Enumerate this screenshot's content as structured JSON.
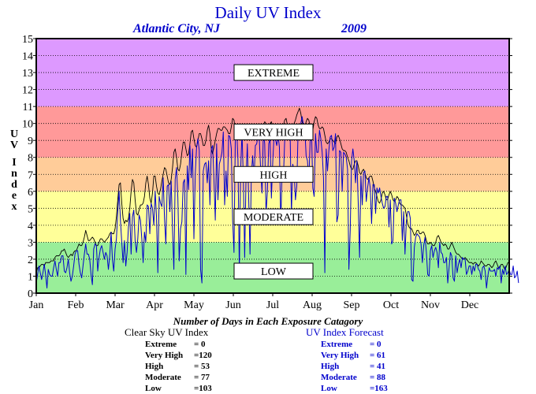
{
  "chart_data": {
    "type": "line",
    "title": "Daily UV Index",
    "location": "Atlantic City, NJ",
    "year": "2009",
    "ylabel": "UV Index",
    "xlabel": "",
    "ylim": [
      0,
      15
    ],
    "y_ticks": [
      0,
      1,
      2,
      3,
      4,
      5,
      6,
      7,
      8,
      9,
      10,
      11,
      12,
      13,
      14,
      15
    ],
    "x_tick_labels": [
      "Jan",
      "Feb",
      "Mar",
      "Apr",
      "May",
      "Jun",
      "Jul",
      "Aug",
      "Sep",
      "Oct",
      "Nov",
      "Dec"
    ],
    "grid": true,
    "bands": [
      {
        "label": "LOW",
        "from": 0,
        "to": 3,
        "color": "#99ee99",
        "label_y": 1.3
      },
      {
        "label": "MODERATE",
        "from": 3,
        "to": 6,
        "color": "#ffff99",
        "label_y": 4.5
      },
      {
        "label": "HIGH",
        "from": 6,
        "to": 8,
        "color": "#ffcc99",
        "label_y": 7
      },
      {
        "label": "VERY HIGH",
        "from": 8,
        "to": 11,
        "color": "#ff9999",
        "label_y": 9.5
      },
      {
        "label": "EXTREME",
        "from": 11,
        "to": 15,
        "color": "#dd99ff",
        "label_y": 13
      }
    ],
    "series": [
      {
        "name": "Clear Sky UV Index",
        "color": "#000000",
        "values": [
          1.2,
          1.5,
          1.5,
          1.6,
          1.7,
          1.7,
          1.6,
          1.8,
          1.8,
          1.8,
          1.8,
          1.9,
          1.9,
          1.9,
          2.1,
          2.2,
          2.2,
          2.2,
          2.3,
          2.5,
          2.5,
          2.6,
          2.4,
          2.2,
          2.1,
          2.2,
          2.3,
          2.2,
          2.4,
          2.5,
          2.5,
          2.7,
          2.9,
          2.8,
          2.8,
          3,
          3.3,
          3.7,
          3.4,
          3.1,
          3.1,
          3.2,
          3.3,
          3.2,
          3,
          2.8,
          2.8,
          3,
          3.2,
          3.2,
          3.1,
          3,
          3.1,
          3.2,
          3.3,
          3.5,
          3.6,
          3.5,
          3.5,
          3.8,
          4.5,
          5.5,
          6.4,
          6.5,
          5.3,
          4.4,
          4.1,
          4.3,
          4.2,
          4.4,
          5,
          6,
          6.7,
          6.5,
          5.5,
          4.7,
          4.6,
          4.9,
          5.2,
          5.2,
          5.3,
          5.7,
          6.5,
          6.9,
          6.4,
          5.6,
          5.3,
          5.9,
          6.9,
          6.9,
          6.3,
          5.9,
          5.8,
          6.1,
          6.6,
          7,
          7.4,
          7.3,
          6.9,
          6.5,
          6.4,
          6.7,
          7.4,
          8.3,
          8.5,
          8,
          7.3,
          7.2,
          7.6,
          8.3,
          8.9,
          8.9,
          8.5,
          8.1,
          8.2,
          8.8,
          9.5,
          9.6,
          9.1,
          8.7,
          8.6,
          9,
          9.4,
          9.4,
          9.1,
          8.7,
          8.7,
          9,
          9.6,
          9.9,
          9.4,
          8.5,
          8.2,
          8.6,
          9,
          9.4,
          9.7,
          9.7,
          9.6,
          9.6,
          9.8,
          9.8,
          9.7,
          9.6,
          9.4,
          9.4,
          9.8,
          10.3,
          10.2,
          9.6,
          9.1,
          9.1,
          9.6,
          9.9,
          9.6,
          9.2,
          9,
          9.2,
          9.4,
          9.6,
          9.8,
          9.8,
          9.5,
          9.2,
          9.3,
          9.8,
          9.9,
          9.6,
          9.4,
          9.6,
          9.9,
          10.1,
          10,
          9.9,
          9.8,
          10,
          10.1,
          9.8,
          9.4,
          9.3,
          9.3,
          9.6,
          9.8,
          9.6,
          9.6,
          9.9,
          10.2,
          10.3,
          9.9,
          9.6,
          9.7,
          9.8,
          9.9,
          10,
          10.2,
          10.5,
          10.7,
          10.9,
          10.6,
          10.1,
          9.8,
          9.8,
          10.1,
          10.3,
          10.2,
          9.8,
          9.5,
          9.6,
          10.1,
          10.4,
          10.3,
          9.9,
          9.7,
          9.7,
          9.8,
          9.7,
          9.3,
          8.9,
          8.8,
          8.9,
          9.1,
          9.1,
          9,
          8.9,
          8.8,
          9.2,
          9.3,
          9.1,
          8.8,
          8.5,
          8.4,
          8.4,
          8.3,
          8,
          7.8,
          7.5,
          7.3,
          7.3,
          7.6,
          7.8,
          7.8,
          7.5,
          7.1,
          7,
          7.2,
          7.3,
          7.1,
          6.8,
          6.7,
          6.8,
          6.9,
          6.9,
          6.6,
          6.2,
          6,
          5.7,
          5.4,
          5.3,
          5.5,
          5.9,
          6,
          5.8,
          5.5,
          5.5,
          5.8,
          6,
          5.8,
          5.5,
          5.4,
          5.5,
          5.7,
          5.6,
          5.3,
          5.2,
          5.2,
          5.1,
          5,
          4.6,
          4.1,
          3.9,
          3.8,
          3.8,
          3.6,
          3.4,
          3.5,
          3.7,
          3.7,
          3.5,
          3.5,
          3.6,
          3.6,
          3.4,
          3.1,
          2.9,
          2.9,
          3,
          2.9,
          2.8,
          2.8,
          3,
          3.3,
          3.4,
          3.2,
          3,
          2.9,
          2.8,
          2.9,
          2.8,
          2.6,
          2.6,
          2.8,
          3,
          2.8,
          2.6,
          2.4,
          2.3,
          2.3,
          2.2,
          2.1,
          2,
          2,
          2.1,
          2,
          1.9,
          1.8,
          1.8,
          1.8,
          1.7,
          1.8,
          1.8,
          1.7,
          1.6,
          1.7,
          1.9,
          1.8,
          1.7,
          1.6,
          1.6,
          1.7,
          1.7,
          1.6,
          1.5,
          1.6,
          1.8,
          1.9,
          1.7,
          1.5,
          1.5,
          1.7,
          1.7,
          1.5,
          1.4,
          1.6,
          1.8,
          1.8
        ]
      },
      {
        "name": "UV Index Forecast",
        "color": "#0000cc",
        "values": [
          0.6,
          1.1,
          1.6,
          1.2,
          0.8,
          1.2,
          1.7,
          1.1,
          0.3,
          1.4,
          1.1,
          1,
          1,
          1.5,
          1.9,
          1.4,
          1,
          1.8,
          1.8,
          2.2,
          2.2,
          1.3,
          1.2,
          1.5,
          2,
          1.2,
          0.7,
          1,
          1.6,
          2.3,
          2.5,
          2.5,
          1.7,
          1.2,
          0.9,
          1.6,
          2.3,
          2.9,
          2.3,
          2.3,
          2,
          1.1,
          0.5,
          2.6,
          2.9,
          2.8,
          1.3,
          2.1,
          2.6,
          2.8,
          2.4,
          2,
          2.4,
          2.2,
          1.4,
          2.2,
          3.6,
          2,
          1.3,
          2.6,
          3.2,
          4.8,
          6,
          4.3,
          3,
          1.8,
          3.1,
          1.6,
          2.4,
          3.9,
          4.7,
          2.3,
          4.5,
          4.9,
          3.1,
          2.4,
          3.2,
          4.6,
          4.3,
          3.2,
          1.8,
          3.6,
          3,
          5.2,
          5.1,
          3.5,
          5.3,
          5,
          4,
          6,
          4.5,
          1.2,
          5.7,
          5.3,
          5.1,
          6.8,
          4.4,
          2.9,
          6.3,
          6.4,
          4.8,
          6.6,
          3.7,
          1.4,
          6.7,
          7.4,
          5.6,
          1.9,
          3.8,
          4.2,
          6.5,
          6.7,
          1.1,
          7.5,
          6.1,
          8.7,
          6.8,
          8.5,
          3.2,
          7,
          8.6,
          9.1,
          8.4,
          1.4,
          0.6,
          7.2,
          7.6,
          7.7,
          6.5,
          7.8,
          5.2,
          8.5,
          8.7,
          6.7,
          4.3,
          8.8,
          5.5,
          7.6,
          7.9,
          8.3,
          9.5,
          5.2,
          7.2,
          5.7,
          9.3,
          9.2,
          8.5,
          4.3,
          2.4,
          9.2,
          9.7,
          7.8,
          1.3,
          7.3,
          9.5,
          6.7,
          2.1,
          6.8,
          8.8,
          5.6,
          2.3,
          7,
          8.1,
          6.7,
          8.7,
          8.8,
          9.3,
          9,
          7.2,
          5.9,
          9.6,
          8.8,
          4.7,
          6,
          8.8,
          9.1,
          5.6,
          7.7,
          9.3,
          9.1,
          8.7,
          9.3,
          8.6,
          4.1,
          7.1,
          6.8,
          9.1,
          9.6,
          9.8,
          9.6,
          9.5,
          4.7,
          7.6,
          7.2,
          5.5,
          6.3,
          9.6,
          9.9,
          10,
          10.4,
          9.9,
          9.7,
          8.1,
          7.8,
          6.6,
          9,
          9.7,
          6.2,
          5.7,
          9.4,
          8.3,
          8.3,
          9.6,
          9.1,
          8.3,
          6.8,
          1.2,
          8.5,
          7.2,
          8.4,
          9.2,
          9.3,
          8.4,
          8.6,
          9.4,
          4.2,
          4.6,
          8.4,
          8.3,
          6,
          8.3,
          8.2,
          8,
          7.3,
          1.4,
          3.7,
          7.8,
          8.5,
          7.8,
          6.5,
          7.8,
          5.3,
          2.1,
          6.9,
          5.2,
          7.1,
          7.2,
          5.4,
          6.2,
          6.8,
          6.2,
          4.1,
          6.4,
          6.4,
          4.7,
          6.2,
          5.9,
          6.2,
          5.7,
          5.3,
          5,
          5.1,
          5.7,
          5.7,
          3.9,
          5.5,
          2.9,
          3.1,
          5.6,
          5.3,
          4.8,
          5.2,
          5.5,
          5.5,
          3.1,
          4.8,
          2.3,
          4.2,
          4.8,
          4.8,
          4.4,
          0.8,
          0.7,
          2.7,
          3.3,
          3.5,
          3.4,
          3.3,
          2.9,
          1.8,
          2.8,
          3.3,
          2.4,
          1.1,
          1,
          2.5,
          2.8,
          2.1,
          2.5,
          2.7,
          2.4,
          1.5,
          3,
          2.4,
          2.3,
          1.8,
          1.8,
          2.1,
          0.6,
          1.5,
          2.4,
          2.2,
          0.9,
          0.7,
          2.2,
          1.2,
          1.7,
          2,
          1.5,
          2.1,
          2,
          2,
          1.1,
          1.3,
          1.6,
          1.6,
          1.1,
          1.6,
          1.3,
          1.7,
          1.7,
          1.4,
          1.3,
          0.8,
          1.5,
          1.6,
          1.3,
          0.3,
          1,
          1.5,
          1.3,
          1.3,
          1.3,
          1.4,
          1,
          1.5,
          1.4,
          1.6,
          0.6,
          1.4,
          1.1,
          1.6,
          1.1,
          1.2,
          1.4,
          1.1,
          1.1,
          1.6,
          0.9,
          1,
          1.3,
          0.6
        ]
      }
    ]
  },
  "exposure_summary_title": "Number of Days in Each Exposure Catagory",
  "clear_sky_stats": {
    "title": "Clear Sky UV Index",
    "rows": [
      {
        "label": "Extreme",
        "value": "=    0"
      },
      {
        "label": "Very High",
        "value": "=120"
      },
      {
        "label": "High",
        "value": "=  53"
      },
      {
        "label": "Moderate",
        "value": "=  77"
      },
      {
        "label": "Low",
        "value": "=103"
      }
    ]
  },
  "forecast_stats": {
    "title": "UV Index Forecast",
    "rows": [
      {
        "label": "Extreme",
        "value": "=    0"
      },
      {
        "label": "Very High",
        "value": "=  61"
      },
      {
        "label": "High",
        "value": "=  41"
      },
      {
        "label": "Moderate",
        "value": "=  88"
      },
      {
        "label": "Low",
        "value": "=163"
      }
    ]
  }
}
